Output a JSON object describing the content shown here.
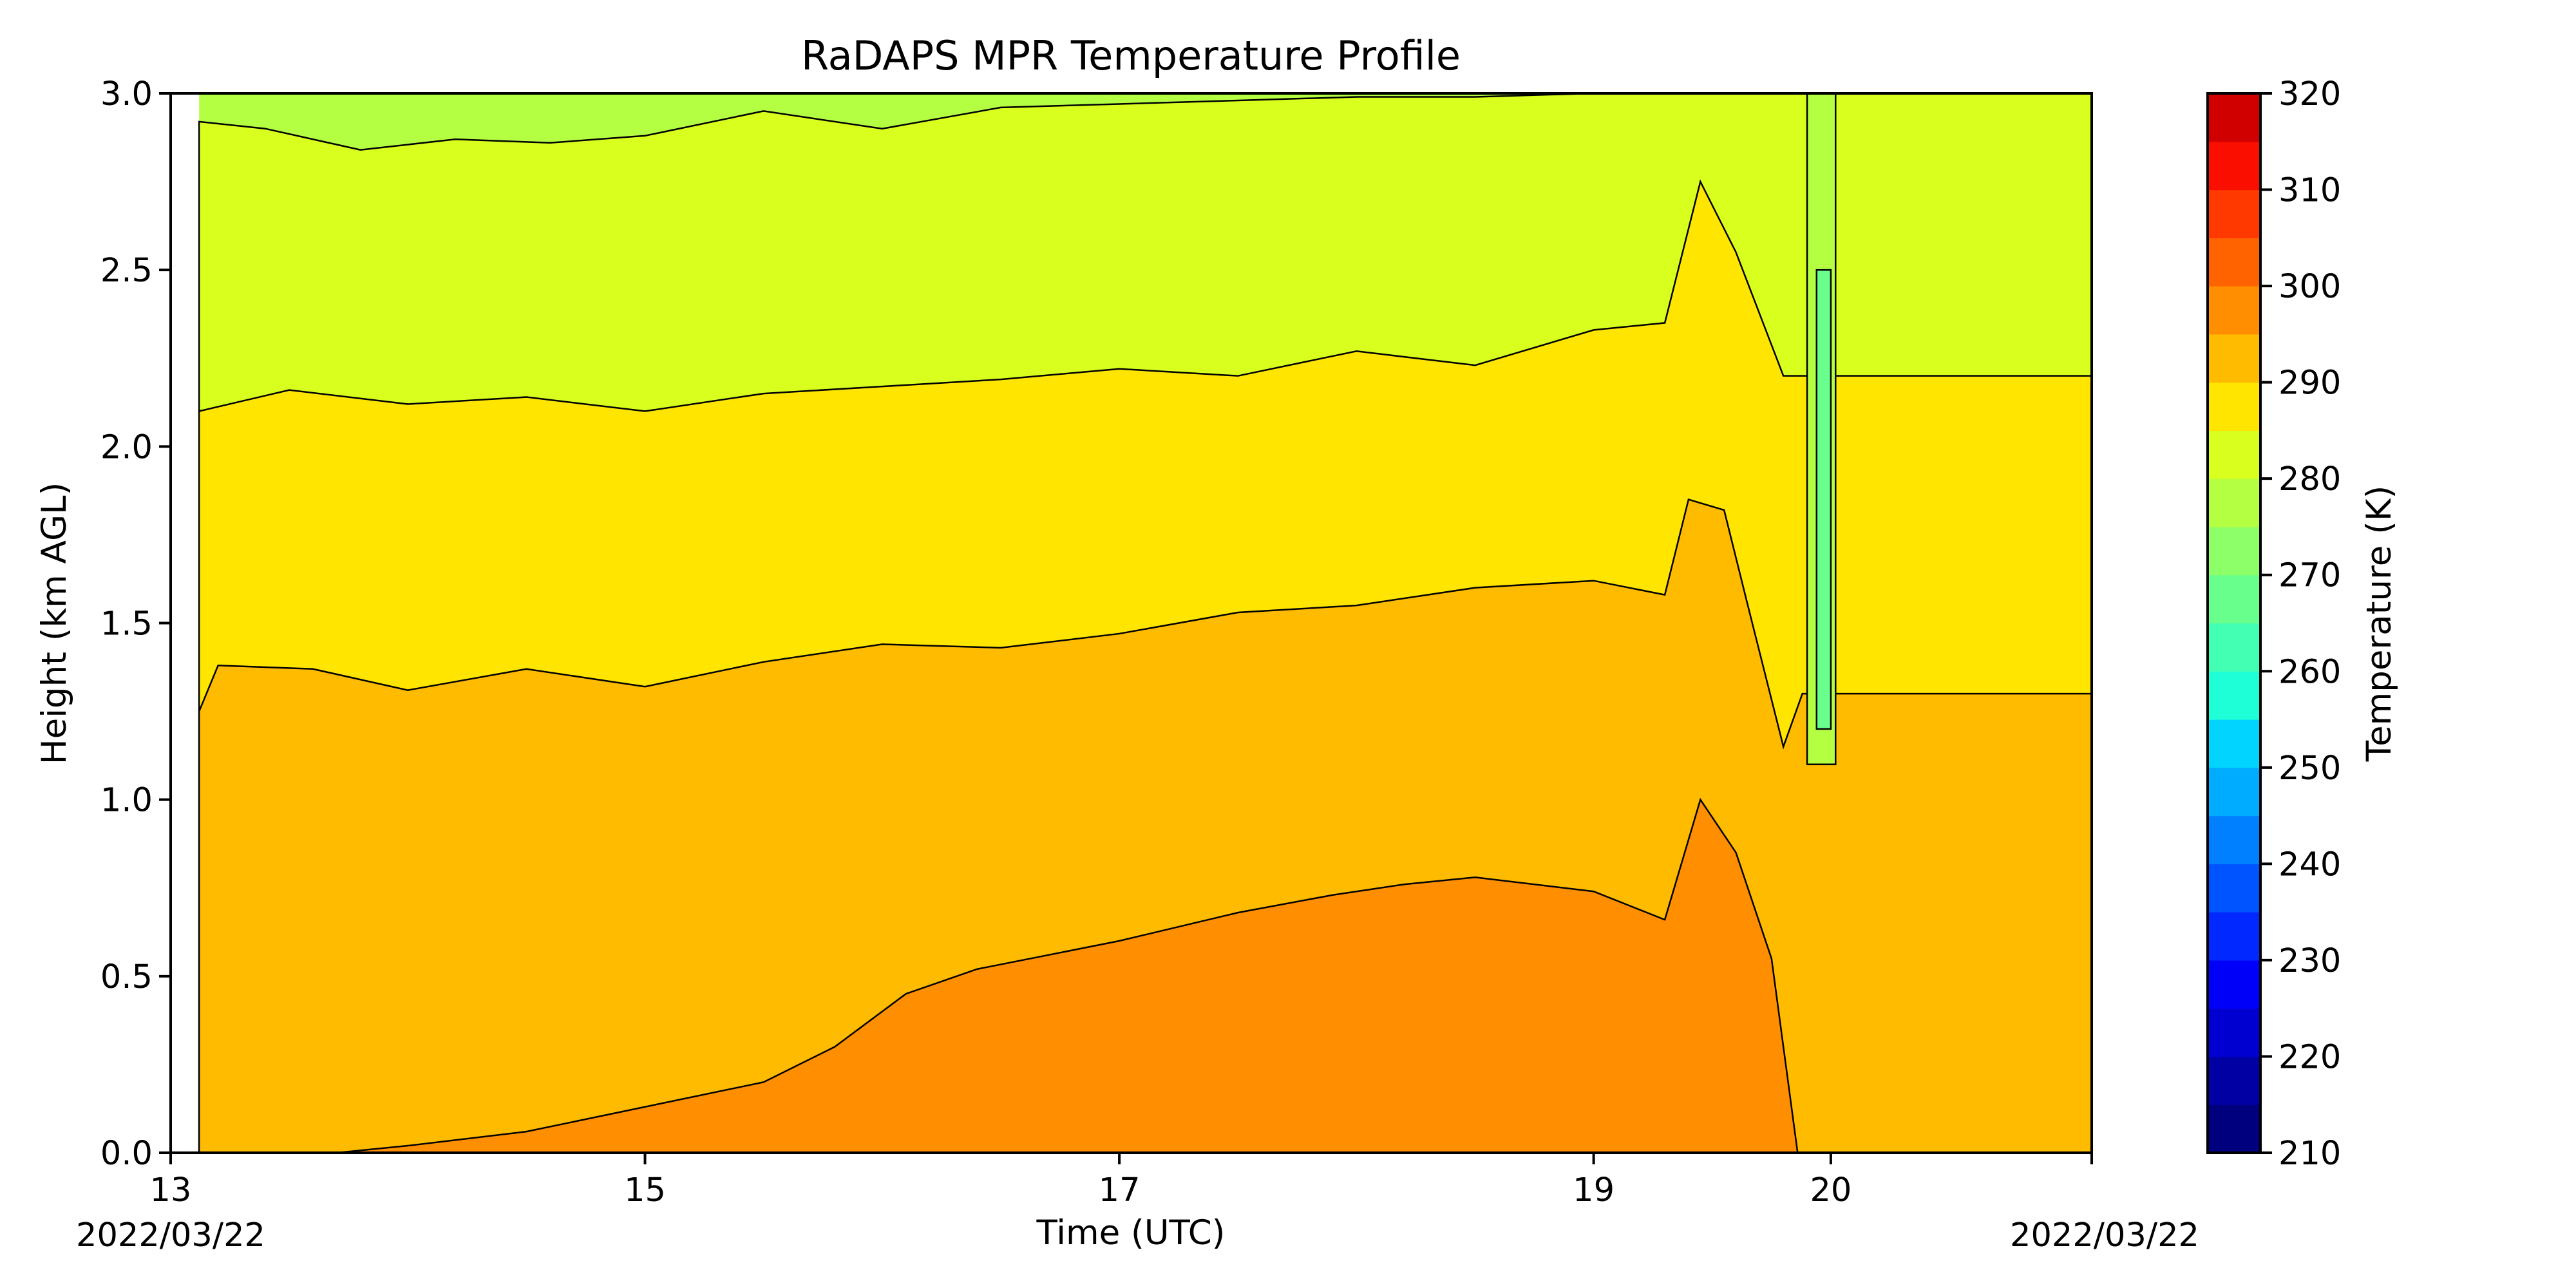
{
  "chart_data": {
    "type": "heatmap",
    "title": "RaDAPS MPR Temperature Profile",
    "xlabel": "Time (UTC)",
    "ylabel": "Height (km AGL)",
    "x_ticks": [
      {
        "value": 13,
        "label": "13"
      },
      {
        "value": 15,
        "label": "15"
      },
      {
        "value": 17,
        "label": "17"
      },
      {
        "value": 19,
        "label": "19"
      },
      {
        "value": 20,
        "label": "20"
      }
    ],
    "x_date_labels": {
      "start": "2022/03/22",
      "end": "2022/03/22"
    },
    "xlim": [
      13,
      21.1
    ],
    "data_start": 13.12,
    "ylim": [
      0,
      3
    ],
    "y_ticks": [
      "0.0",
      "0.5",
      "1.0",
      "1.5",
      "2.0",
      "2.5",
      "3.0"
    ],
    "colorbar": {
      "label": "Temperature (K)",
      "range": [
        210,
        320
      ],
      "ticks": [
        "210",
        "220",
        "230",
        "240",
        "250",
        "260",
        "270",
        "280",
        "290",
        "300",
        "310",
        "320"
      ],
      "levels": [
        210,
        215,
        220,
        225,
        230,
        235,
        240,
        245,
        250,
        255,
        260,
        265,
        270,
        275,
        280,
        285,
        290,
        295,
        300,
        305,
        310,
        315,
        320
      ],
      "colors": [
        "#00007f",
        "#0000a3",
        "#0000d1",
        "#0000fa",
        "#0028ff",
        "#0054ff",
        "#0080ff",
        "#00acff",
        "#00d4ff",
        "#1effd8",
        "#42ffb4",
        "#69ff8d",
        "#8dff69",
        "#b4ff42",
        "#d8ff1e",
        "#ffe500",
        "#ffbb00",
        "#ff8e00",
        "#ff6300",
        "#ff3900",
        "#fa0e00",
        "#d10000",
        "#a30000"
      ]
    },
    "contour_boundaries": [
      {
        "level": 295,
        "x": [
          13.1,
          13.7,
          14.0,
          14.5,
          15.0,
          15.5,
          15.8,
          16.1,
          16.4,
          17.0,
          17.5,
          17.9,
          18.2,
          18.5,
          19.0,
          19.3,
          19.45,
          19.6,
          19.75,
          19.82,
          19.86
        ],
        "y": [
          0.0,
          0.0,
          0.02,
          0.06,
          0.13,
          0.2,
          0.3,
          0.45,
          0.52,
          0.6,
          0.68,
          0.73,
          0.76,
          0.78,
          0.74,
          0.66,
          1.0,
          0.85,
          0.55,
          0.2,
          0.0
        ]
      },
      {
        "level": 290,
        "x": [
          13.12,
          13.2,
          13.6,
          14.0,
          14.5,
          15.0,
          15.5,
          16.0,
          16.5,
          17.0,
          17.5,
          18.0,
          18.5,
          19.0,
          19.3,
          19.4,
          19.55,
          19.65,
          19.8,
          19.88
        ],
        "y": [
          1.25,
          1.38,
          1.37,
          1.31,
          1.37,
          1.32,
          1.39,
          1.44,
          1.43,
          1.47,
          1.53,
          1.55,
          1.6,
          1.62,
          1.58,
          1.85,
          1.82,
          1.55,
          1.15,
          1.3
        ]
      },
      {
        "level": 285,
        "x": [
          13.12,
          13.5,
          14.0,
          14.5,
          15.0,
          15.5,
          16.0,
          16.5,
          17.0,
          17.5,
          18.0,
          18.5,
          19.0,
          19.3,
          19.45,
          19.6,
          19.8
        ],
        "y": [
          2.1,
          2.16,
          2.12,
          2.14,
          2.1,
          2.15,
          2.17,
          2.19,
          2.22,
          2.2,
          2.27,
          2.23,
          2.33,
          2.35,
          2.75,
          2.55,
          2.2
        ]
      },
      {
        "level": 280,
        "x": [
          13.12,
          13.4,
          13.8,
          14.2,
          14.6,
          15.0,
          15.5,
          16.0,
          16.5,
          17.0,
          17.5,
          18.0,
          18.5,
          19.0
        ],
        "y": [
          2.92,
          2.9,
          2.84,
          2.87,
          2.86,
          2.88,
          2.95,
          2.9,
          2.96,
          2.97,
          2.98,
          2.99,
          2.99,
          3.0
        ]
      }
    ],
    "grid": false,
    "legend": "colorbar-right"
  }
}
